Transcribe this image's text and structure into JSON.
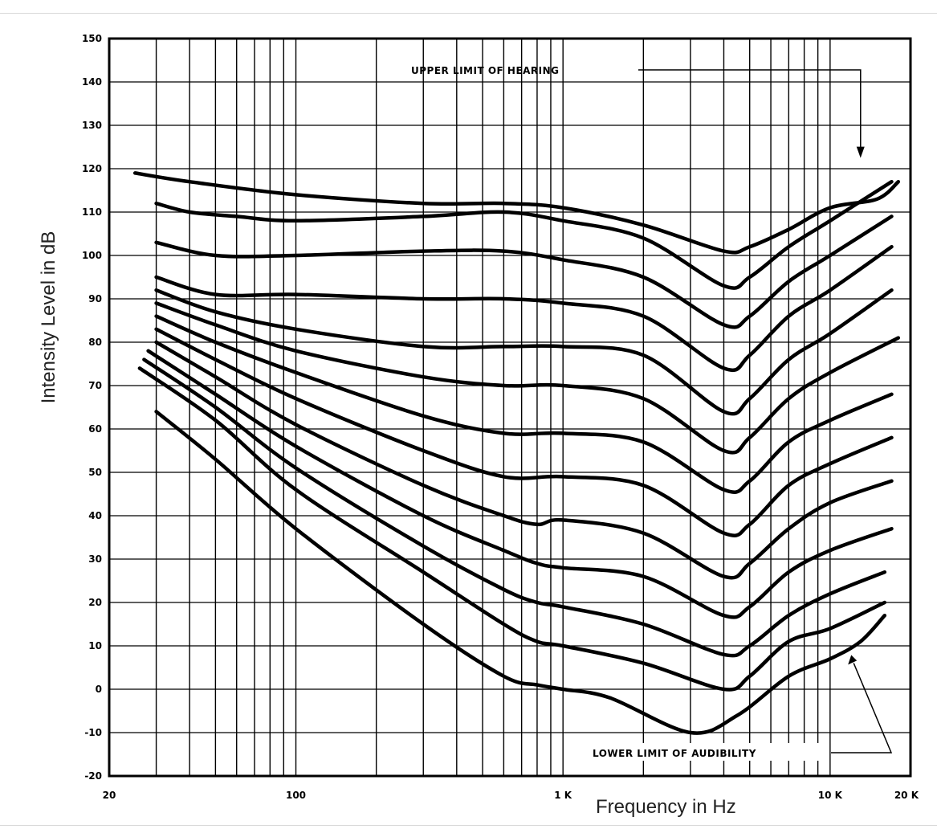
{
  "chart_data": {
    "type": "line",
    "xlabel": "Frequency in Hz",
    "ylabel": "Intensity Level in dB",
    "x_scale": "log",
    "xlim": [
      20,
      20000
    ],
    "ylim": [
      -20,
      150
    ],
    "x_ticks": [
      {
        "value": 20,
        "label": "20"
      },
      {
        "value": 100,
        "label": "100"
      },
      {
        "value": 1000,
        "label": "1 K"
      },
      {
        "value": 10000,
        "label": "10 K"
      },
      {
        "value": 20000,
        "label": "20 K"
      }
    ],
    "y_ticks": [
      -20,
      -10,
      0,
      10,
      20,
      30,
      40,
      50,
      60,
      70,
      80,
      90,
      100,
      110,
      120,
      130,
      140,
      150
    ],
    "y_tick_labels": [
      "-20",
      "-10",
      "0",
      "10",
      "20",
      "30",
      "40",
      "50",
      "60",
      "70",
      "80",
      "90",
      "100",
      "110",
      "120",
      "130",
      "140",
      "150"
    ],
    "grid": true,
    "annotations": [
      {
        "text": "UPPER LIMIT OF HEARING",
        "x": 13000,
        "y": 121
      },
      {
        "text": "LOWER LIMIT OF AUDIBILITY",
        "x": 12000,
        "y": 9
      }
    ],
    "series": [
      {
        "x": [
          25,
          40,
          100,
          300,
          600,
          1000,
          2000,
          4000,
          5000,
          7000,
          10000,
          15000,
          18000
        ],
        "values": [
          119,
          117,
          114,
          112,
          112,
          111,
          107,
          101,
          102,
          106,
          111,
          113,
          117
        ]
      },
      {
        "x": [
          30,
          40,
          60,
          100,
          300,
          600,
          1000,
          2000,
          4000,
          5000,
          7000,
          10000,
          17000
        ],
        "values": [
          112,
          110,
          109,
          108,
          109,
          110,
          108,
          104,
          93,
          95,
          102,
          108,
          117
        ]
      },
      {
        "x": [
          30,
          50,
          100,
          300,
          600,
          1000,
          2000,
          4000,
          5000,
          7000,
          10000,
          17000
        ],
        "values": [
          103,
          100,
          100,
          101,
          101,
          99,
          95,
          84,
          86,
          94,
          100,
          109
        ]
      },
      {
        "x": [
          30,
          50,
          100,
          300,
          600,
          1000,
          2000,
          4000,
          5000,
          7000,
          10000,
          17000
        ],
        "values": [
          95,
          91,
          91,
          90,
          90,
          89,
          86,
          74,
          77,
          86,
          92,
          102
        ]
      },
      {
        "x": [
          30,
          50,
          100,
          300,
          600,
          1000,
          2000,
          4000,
          5000,
          7000,
          10000,
          17000
        ],
        "values": [
          92,
          87,
          83,
          79,
          79,
          79,
          77,
          64,
          67,
          76,
          82,
          92
        ]
      },
      {
        "x": [
          30,
          50,
          100,
          300,
          600,
          1000,
          2000,
          4000,
          5000,
          7000,
          10000,
          18000
        ],
        "values": [
          89,
          84,
          78,
          72,
          70,
          70,
          67,
          55,
          58,
          67,
          73,
          81
        ]
      },
      {
        "x": [
          30,
          50,
          100,
          300,
          600,
          1000,
          2000,
          4000,
          5000,
          7000,
          10000,
          17000
        ],
        "values": [
          86,
          80,
          73,
          63,
          59,
          59,
          57,
          46,
          48,
          57,
          62,
          68
        ]
      },
      {
        "x": [
          30,
          50,
          100,
          300,
          600,
          1000,
          2000,
          4000,
          5000,
          7000,
          10000,
          17000
        ],
        "values": [
          83,
          76,
          67,
          55,
          49,
          49,
          47,
          36,
          38,
          47,
          52,
          58
        ]
      },
      {
        "x": [
          30,
          50,
          100,
          300,
          600,
          800,
          1000,
          2000,
          4000,
          5000,
          7000,
          10000,
          17000
        ],
        "values": [
          80,
          72,
          61,
          47,
          40,
          38,
          39,
          36,
          26,
          29,
          37,
          43,
          48
        ]
      },
      {
        "x": [
          28,
          50,
          100,
          300,
          600,
          800,
          1000,
          2000,
          4000,
          5000,
          7000,
          10000,
          17000
        ],
        "values": [
          78,
          68,
          56,
          40,
          32,
          29,
          28,
          26,
          17,
          19,
          27,
          32,
          37
        ]
      },
      {
        "x": [
          27,
          50,
          100,
          300,
          600,
          800,
          1000,
          2000,
          4000,
          5000,
          7000,
          10000,
          16000
        ],
        "values": [
          76,
          65,
          51,
          33,
          23,
          20,
          19,
          15,
          8,
          10,
          17,
          22,
          27
        ]
      },
      {
        "x": [
          26,
          50,
          100,
          300,
          600,
          800,
          1000,
          2000,
          4000,
          5000,
          7000,
          10000,
          16000
        ],
        "values": [
          74,
          62,
          46,
          27,
          15,
          11,
          10,
          6,
          0,
          3,
          11,
          14,
          20
        ]
      },
      {
        "x": [
          30,
          50,
          100,
          300,
          600,
          800,
          1000,
          1500,
          3000,
          4500,
          7000,
          10000,
          13000,
          16000
        ],
        "values": [
          64,
          53,
          37,
          15,
          3,
          1,
          0,
          -2,
          -10,
          -6,
          3,
          7,
          11,
          17
        ]
      }
    ]
  }
}
